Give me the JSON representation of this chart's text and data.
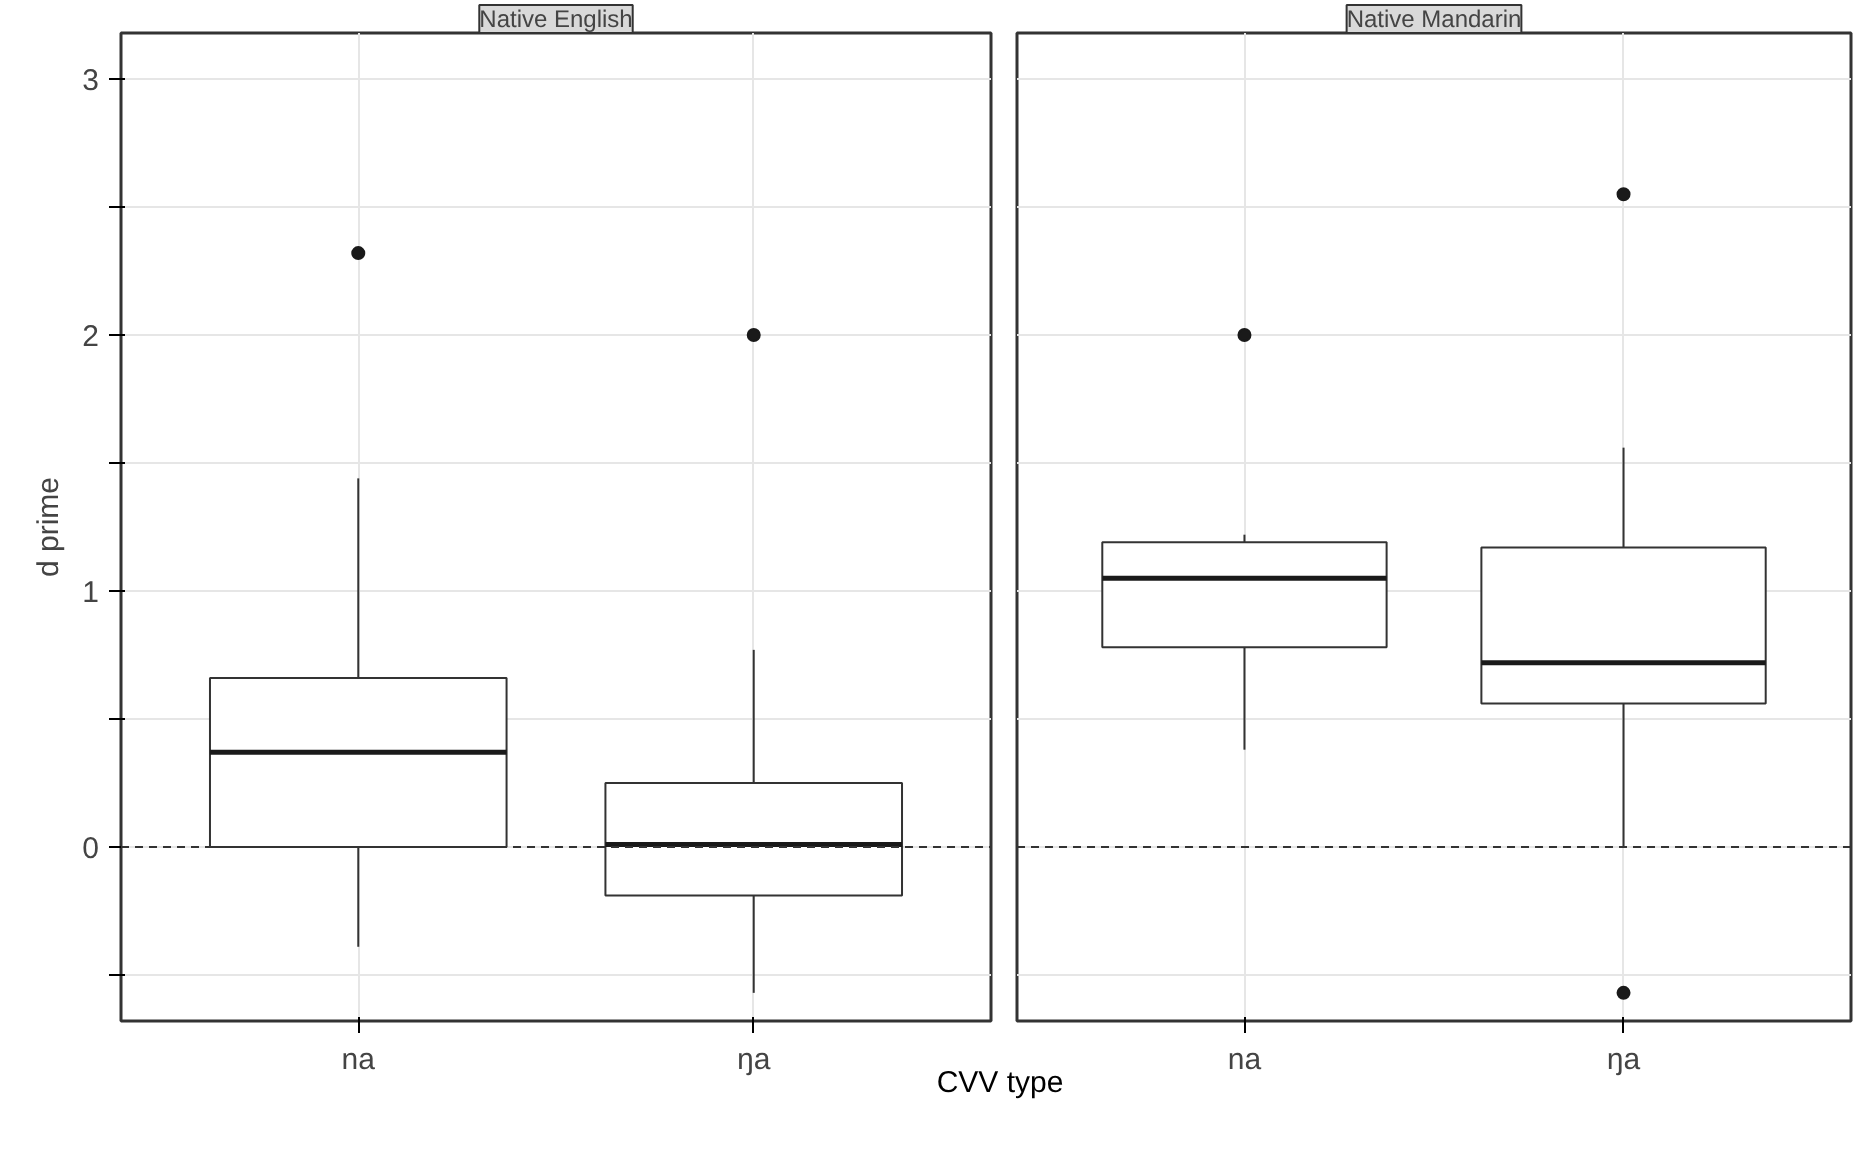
{
  "chart_data": [
    {
      "type": "box",
      "title": "Native English",
      "ylabel": "d prime",
      "xlabel": "CVV type",
      "categories": [
        "na",
        "ŋa"
      ],
      "boxes": [
        {
          "low": -0.39,
          "q1": 0.0,
          "median": 0.37,
          "q3": 0.66,
          "high": 1.44,
          "outliers": [
            2.32
          ]
        },
        {
          "low": -0.57,
          "q1": -0.19,
          "median": 0.01,
          "q3": 0.25,
          "high": 0.77,
          "outliers": [
            2.0
          ]
        }
      ],
      "ylim": [
        -0.68,
        3.18
      ],
      "yticks": [
        {
          "value": -0.5,
          "label": null
        },
        0,
        {
          "value": 0.5,
          "label": null
        },
        1,
        {
          "value": 1.5,
          "label": null
        },
        2,
        {
          "value": 2.5,
          "label": null
        },
        3
      ],
      "ref_lines": [
        {
          "axis": "y",
          "value": 0,
          "line_style": "dashed"
        }
      ],
      "grid": true
    },
    {
      "type": "box",
      "title": "Native Mandarin",
      "categories": [
        "na",
        "ŋa"
      ],
      "boxes": [
        {
          "low": 0.38,
          "q1": 0.78,
          "median": 1.05,
          "q3": 1.19,
          "high": 1.22,
          "outliers": [
            2.0
          ]
        },
        {
          "low": 0.0,
          "q1": 0.56,
          "median": 0.72,
          "q3": 1.17,
          "high": 1.56,
          "outliers": [
            2.55,
            -0.57
          ]
        }
      ],
      "ylim": [
        -0.68,
        3.18
      ],
      "yticks": [
        {
          "value": -0.5,
          "label": null
        },
        0,
        {
          "value": 0.5,
          "label": null
        },
        1,
        {
          "value": 1.5,
          "label": null
        },
        2,
        {
          "value": 2.5,
          "label": null
        },
        3
      ],
      "ref_lines": [
        {
          "axis": "y",
          "value": 0,
          "line_style": "dashed"
        }
      ],
      "grid": true,
      "tick_labels": "x"
    }
  ]
}
